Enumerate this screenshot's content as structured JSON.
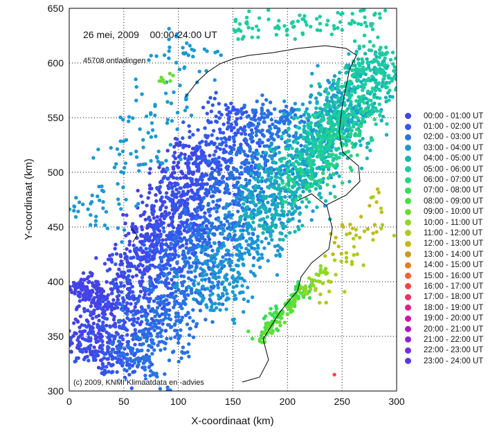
{
  "chart_data": {
    "type": "scatter",
    "title": "26 mei, 2009    00:00-24:00 UT",
    "count_label": "45708 ontladingen",
    "copyright": "(c) 2009, KNMI Klimaatdata en -advies",
    "xlabel": "X-coordinaat (km)",
    "ylabel": "Y-coordinaat (km)",
    "xlim": [
      0,
      300
    ],
    "ylim": [
      300,
      650
    ],
    "xticks": [
      "0",
      "50",
      "100",
      "150",
      "200",
      "250",
      "300"
    ],
    "yticks": [
      "300",
      "350",
      "400",
      "450",
      "500",
      "550",
      "600",
      "650"
    ],
    "grid": true,
    "legend_placement": "right",
    "series": [
      {
        "name": "00:00 - 01:00 UT",
        "color": "#4343e6",
        "bands": [
          [
            10,
            330,
            120,
            520,
            25,
            650
          ],
          [
            5,
            400,
            30,
            380,
            12,
            120
          ]
        ]
      },
      {
        "name": "01:00 - 02:00 UT",
        "color": "#3356ee",
        "bands": [
          [
            30,
            315,
            160,
            560,
            30,
            900
          ]
        ]
      },
      {
        "name": "02:00 - 03:00 UT",
        "color": "#2a72e2",
        "bands": [
          [
            60,
            315,
            200,
            560,
            30,
            800
          ]
        ]
      },
      {
        "name": "03:00 - 04:00 UT",
        "color": "#1c98d2",
        "bands": [
          [
            120,
            380,
            260,
            580,
            30,
            650
          ],
          [
            20,
            450,
            120,
            620,
            30,
            150
          ]
        ]
      },
      {
        "name": "04:00 - 05:00 UT",
        "color": "#18b4b4",
        "bands": [
          [
            170,
            450,
            290,
            600,
            30,
            550
          ]
        ]
      },
      {
        "name": "05:00 - 06:00 UT",
        "color": "#1ccca0",
        "bands": [
          [
            210,
            500,
            295,
            610,
            25,
            380
          ],
          [
            150,
            632,
            290,
            640,
            12,
            90
          ]
        ]
      },
      {
        "name": "06:00 - 07:00 UT",
        "color": "#26d482",
        "bands": [
          [
            200,
            470,
            280,
            560,
            20,
            90
          ]
        ]
      },
      {
        "name": "07:00 - 08:00 UT",
        "color": "#34dc58",
        "bands": [
          [
            180,
            360,
            220,
            400,
            8,
            35
          ]
        ]
      },
      {
        "name": "08:00 - 09:00 UT",
        "color": "#46e040",
        "bands": [
          [
            170,
            345,
            215,
            395,
            8,
            55
          ]
        ]
      },
      {
        "name": "09:00 - 10:00 UT",
        "color": "#68dc34",
        "bands": [
          [
            175,
            345,
            210,
            385,
            6,
            35
          ],
          [
            85,
            580,
            95,
            590,
            4,
            8
          ]
        ]
      },
      {
        "name": "10:00 - 11:00 UT",
        "color": "#8ed824",
        "bands": [
          [
            212,
            388,
            235,
            412,
            5,
            30
          ]
        ]
      },
      {
        "name": "11:00 - 12:00 UT",
        "color": "#aacc1c",
        "bands": [
          [
            225,
            380,
            290,
            470,
            18,
            35
          ]
        ]
      },
      {
        "name": "12:00 - 13:00 UT",
        "color": "#c2b81a",
        "bands": [
          [
            240,
            420,
            290,
            480,
            15,
            22
          ]
        ]
      },
      {
        "name": "13:00 - 14:00 UT",
        "color": "#c89a20",
        "bands": []
      },
      {
        "name": "14:00 - 15:00 UT",
        "color": "#e08024",
        "bands": []
      },
      {
        "name": "15:00 - 16:00 UT",
        "color": "#f06034",
        "bands": []
      },
      {
        "name": "16:00 - 17:00 UT",
        "color": "#f04444",
        "bands": [
          [
            243,
            315,
            243,
            315,
            0,
            1
          ]
        ]
      },
      {
        "name": "17:00 - 18:00 UT",
        "color": "#ee3062",
        "bands": []
      },
      {
        "name": "18:00 - 19:00 UT",
        "color": "#e02084",
        "bands": []
      },
      {
        "name": "19:00 - 20:00 UT",
        "color": "#cf14a6",
        "bands": []
      },
      {
        "name": "20:00 - 21:00 UT",
        "color": "#b014c4",
        "bands": []
      },
      {
        "name": "21:00 - 22:00 UT",
        "color": "#9024d4",
        "bands": []
      },
      {
        "name": "22:00 - 23:00 UT",
        "color": "#7232da",
        "bands": []
      },
      {
        "name": "23:00 - 24:00 UT",
        "color": "#5838e2",
        "bands": []
      }
    ]
  }
}
